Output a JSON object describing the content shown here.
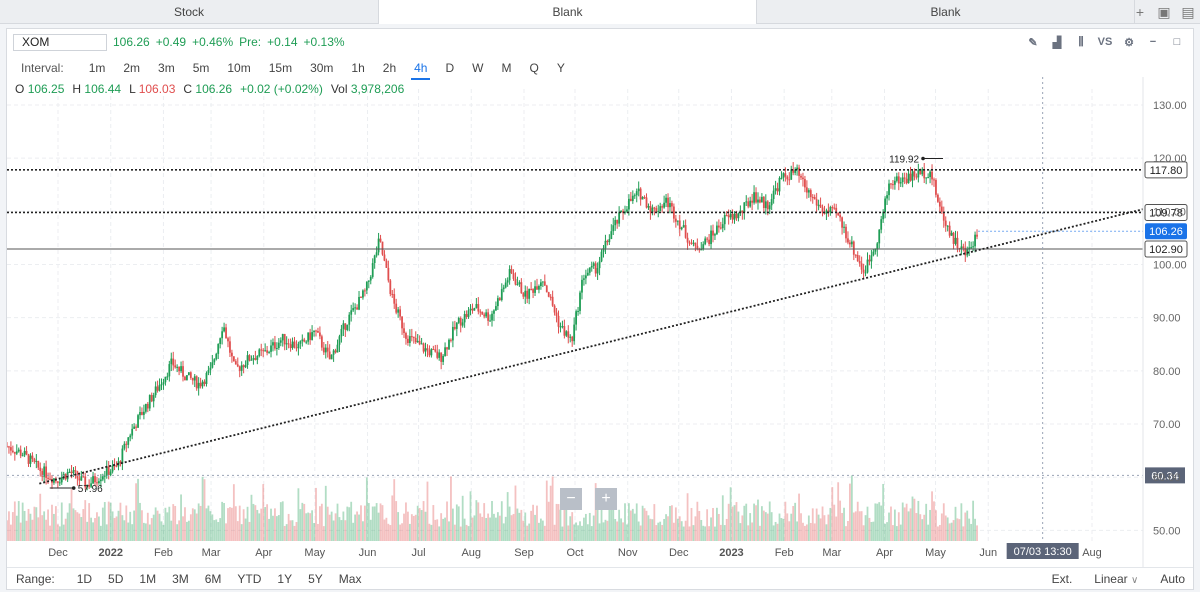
{
  "tabs": [
    {
      "label": "Stock",
      "active": false
    },
    {
      "label": "Blank",
      "active": true
    },
    {
      "label": "Blank",
      "active": false
    }
  ],
  "tab_actions": [
    {
      "icon": "plus-icon",
      "glyph": "+"
    },
    {
      "icon": "save-icon",
      "glyph": "▣"
    },
    {
      "icon": "folder-icon",
      "glyph": "▤"
    }
  ],
  "header": {
    "symbol": "XOM",
    "price": "106.26",
    "change": "+0.49",
    "change_pct": "+0.46%",
    "pre_label": "Pre:",
    "pre_change": "+0.14",
    "pre_pct": "+0.13%"
  },
  "tools": [
    {
      "icon": "pencil-icon",
      "glyph": "✎"
    },
    {
      "icon": "chart-type-icon",
      "glyph": "▟"
    },
    {
      "icon": "indicators-icon",
      "glyph": "⫼"
    },
    {
      "icon": "compare-icon",
      "glyph": "VS"
    },
    {
      "icon": "gear-icon",
      "glyph": "⚙"
    },
    {
      "icon": "minimize-icon",
      "glyph": "−"
    },
    {
      "icon": "maximize-icon",
      "glyph": "□"
    }
  ],
  "interval": {
    "label": "Interval:",
    "options": [
      "1m",
      "2m",
      "3m",
      "5m",
      "10m",
      "15m",
      "30m",
      "1h",
      "2h",
      "4h",
      "D",
      "W",
      "M",
      "Q",
      "Y"
    ],
    "active": "4h"
  },
  "ohlc": {
    "o_label": "O",
    "o": "106.25",
    "h_label": "H",
    "h": "106.44",
    "l_label": "L",
    "l": "106.03",
    "c_label": "C",
    "c": "106.26",
    "chg": "+0.02 (+0.02%)",
    "vol_label": "Vol",
    "vol": "3,978,206"
  },
  "range": {
    "label": "Range:",
    "options": [
      "1D",
      "5D",
      "1M",
      "3M",
      "6M",
      "YTD",
      "1Y",
      "5Y",
      "Max"
    ],
    "ext": "Ext.",
    "scale": "Linear",
    "scale_arrow": "∨",
    "auto": "Auto"
  },
  "zoom": {
    "minus": "−",
    "plus": "+"
  },
  "colors": {
    "up": "#1f9d55",
    "down": "#e04e4e",
    "accent": "#1a73e8",
    "crosshair": "#4b5563"
  },
  "chart_data": {
    "type": "candlestick",
    "symbol": "XOM",
    "interval": "4h",
    "x_range": [
      "2021-11-01",
      "2023-08-31"
    ],
    "ylim": [
      48,
      133
    ],
    "y_ticks": [
      50,
      60,
      70,
      80,
      90,
      100,
      110,
      120,
      130
    ],
    "y_tick_labels": [
      "50.00",
      "60.00",
      "70.00",
      "80.00",
      "90.00",
      "100.00",
      "110.00",
      "120.00",
      "130.00"
    ],
    "x_ticks": [
      {
        "date": "2021-12-01",
        "label": "Dec"
      },
      {
        "date": "2022-01-01",
        "label": "2022",
        "bold": true
      },
      {
        "date": "2022-02-01",
        "label": "Feb"
      },
      {
        "date": "2022-03-01",
        "label": "Mar"
      },
      {
        "date": "2022-04-01",
        "label": "Apr"
      },
      {
        "date": "2022-05-01",
        "label": "May"
      },
      {
        "date": "2022-06-01",
        "label": "Jun"
      },
      {
        "date": "2022-07-01",
        "label": "Jul"
      },
      {
        "date": "2022-08-01",
        "label": "Aug"
      },
      {
        "date": "2022-09-01",
        "label": "Sep"
      },
      {
        "date": "2022-10-01",
        "label": "Oct"
      },
      {
        "date": "2022-11-01",
        "label": "Nov"
      },
      {
        "date": "2022-12-01",
        "label": "Dec"
      },
      {
        "date": "2023-01-01",
        "label": "2023",
        "bold": true
      },
      {
        "date": "2023-02-01",
        "label": "Feb"
      },
      {
        "date": "2023-03-01",
        "label": "Mar"
      },
      {
        "date": "2023-04-01",
        "label": "Apr"
      },
      {
        "date": "2023-05-01",
        "label": "May"
      },
      {
        "date": "2023-06-01",
        "label": "Jun"
      },
      {
        "date": "2023-08-01",
        "label": "Aug"
      }
    ],
    "price_path": [
      [
        "2021-11-01",
        65.8
      ],
      [
        "2021-11-10",
        64.5
      ],
      [
        "2021-11-20",
        61.5
      ],
      [
        "2021-11-30",
        59.5
      ],
      [
        "2021-12-08",
        61.0
      ],
      [
        "2021-12-18",
        58.5
      ],
      [
        "2021-12-28",
        60.8
      ],
      [
        "2022-01-05",
        62.0
      ],
      [
        "2022-01-12",
        68.0
      ],
      [
        "2022-01-20",
        72.5
      ],
      [
        "2022-01-28",
        76.5
      ],
      [
        "2022-02-06",
        81.5
      ],
      [
        "2022-02-14",
        79.0
      ],
      [
        "2022-02-22",
        77.5
      ],
      [
        "2022-03-01",
        80.0
      ],
      [
        "2022-03-08",
        89.0
      ],
      [
        "2022-03-15",
        80.0
      ],
      [
        "2022-03-24",
        82.5
      ],
      [
        "2022-04-02",
        83.5
      ],
      [
        "2022-04-12",
        86.0
      ],
      [
        "2022-04-22",
        84.5
      ],
      [
        "2022-05-01",
        87.5
      ],
      [
        "2022-05-10",
        82.0
      ],
      [
        "2022-05-20",
        89.5
      ],
      [
        "2022-05-31",
        95.0
      ],
      [
        "2022-06-08",
        104.5
      ],
      [
        "2022-06-16",
        93.0
      ],
      [
        "2022-06-24",
        86.5
      ],
      [
        "2022-07-05",
        84.0
      ],
      [
        "2022-07-14",
        82.5
      ],
      [
        "2022-07-24",
        89.0
      ],
      [
        "2022-08-03",
        92.0
      ],
      [
        "2022-08-12",
        90.0
      ],
      [
        "2022-08-24",
        98.5
      ],
      [
        "2022-09-02",
        94.0
      ],
      [
        "2022-09-12",
        97.5
      ],
      [
        "2022-09-22",
        88.5
      ],
      [
        "2022-09-29",
        85.5
      ],
      [
        "2022-10-06",
        98.0
      ],
      [
        "2022-10-14",
        99.5
      ],
      [
        "2022-10-22",
        106.0
      ],
      [
        "2022-11-01",
        111.5
      ],
      [
        "2022-11-08",
        113.5
      ],
      [
        "2022-11-16",
        110.0
      ],
      [
        "2022-11-24",
        112.0
      ],
      [
        "2022-12-02",
        107.5
      ],
      [
        "2022-12-10",
        103.0
      ],
      [
        "2022-12-18",
        104.5
      ],
      [
        "2022-12-28",
        108.5
      ],
      [
        "2023-01-06",
        109.5
      ],
      [
        "2023-01-14",
        113.0
      ],
      [
        "2023-01-22",
        111.0
      ],
      [
        "2023-01-30",
        116.0
      ],
      [
        "2023-02-08",
        117.5
      ],
      [
        "2023-02-14",
        114.0
      ],
      [
        "2023-02-24",
        110.0
      ],
      [
        "2023-03-04",
        109.5
      ],
      [
        "2023-03-12",
        104.0
      ],
      [
        "2023-03-20",
        98.5
      ],
      [
        "2023-03-28",
        105.0
      ],
      [
        "2023-04-04",
        115.5
      ],
      [
        "2023-04-12",
        116.0
      ],
      [
        "2023-04-20",
        117.0
      ],
      [
        "2023-04-28",
        117.5
      ],
      [
        "2023-05-04",
        110.0
      ],
      [
        "2023-05-12",
        104.5
      ],
      [
        "2023-05-19",
        101.8
      ],
      [
        "2023-05-26",
        106.26
      ]
    ],
    "volume_ylim": [
      0,
      25
    ],
    "annotations": [
      {
        "kind": "price-label",
        "date": "2023-04-26",
        "value": 119.92,
        "text": "119.92"
      },
      {
        "kind": "price-label",
        "date": "2021-12-02",
        "value": 57.96,
        "text": "57.96"
      }
    ],
    "horizontal_lines": [
      {
        "value": 117.8,
        "label": "117.80",
        "style": "dotted"
      },
      {
        "value": 109.78,
        "label": "109.78",
        "style": "dotted"
      },
      {
        "value": 102.9,
        "label": "102.90",
        "style": "solid"
      },
      {
        "value": 60.34,
        "label": "60.34",
        "style": "crosshair"
      }
    ],
    "last_price": {
      "value": 106.26,
      "label": "106.26"
    },
    "trendline": {
      "from": [
        "2021-11-20",
        58.8
      ],
      "to": [
        "2023-08-31",
        110.4
      ]
    },
    "crosshair": {
      "date": "2023-07-03",
      "value": 60.34,
      "date_label": "07/03 13:30"
    }
  }
}
